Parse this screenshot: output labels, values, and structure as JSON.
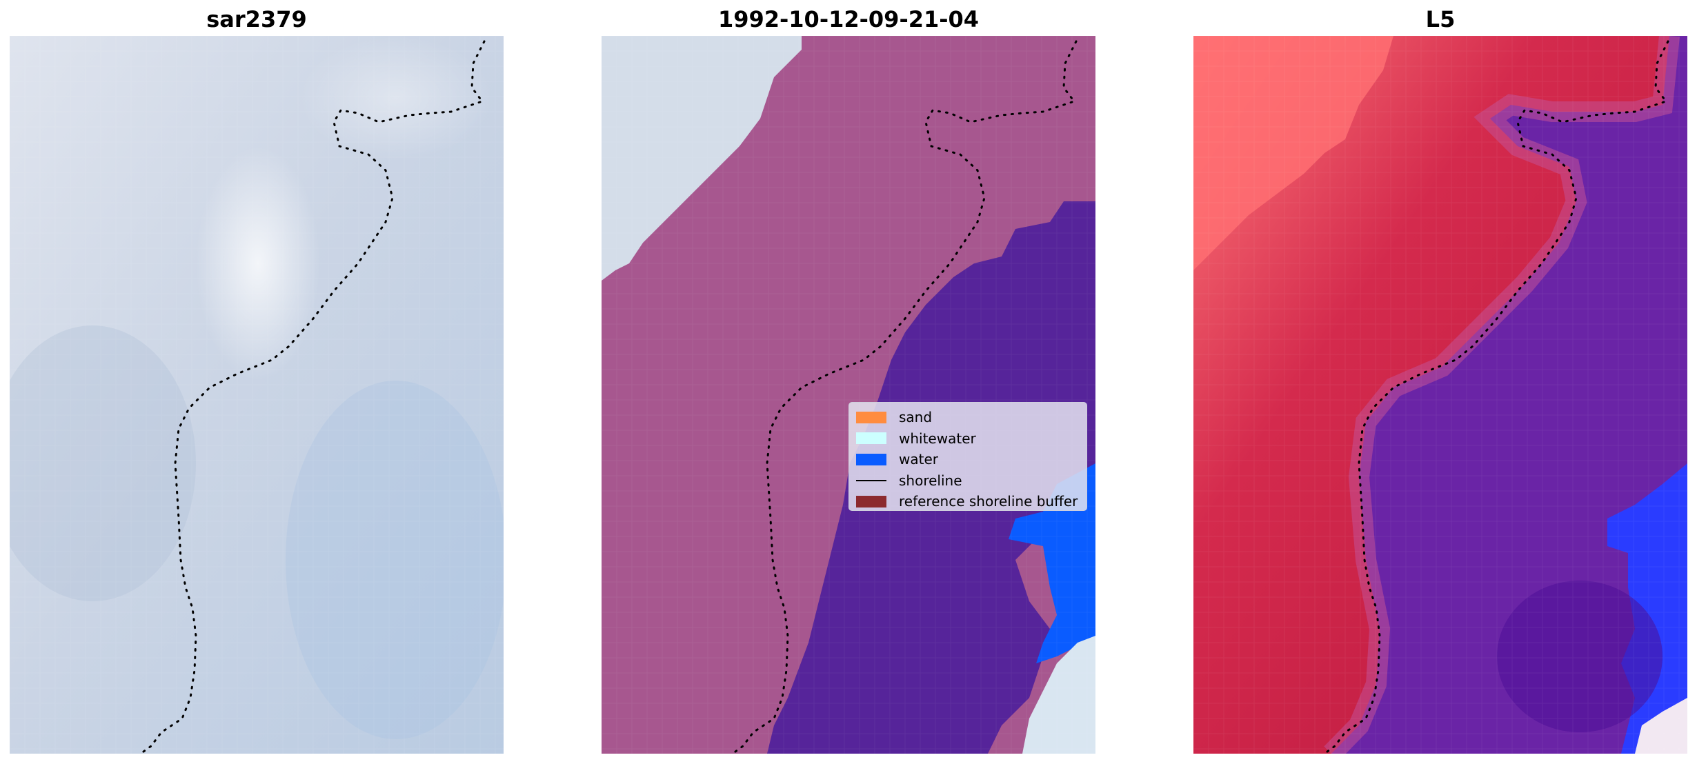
{
  "panels": [
    {
      "title": "sar2379",
      "icon": "rgb-image"
    },
    {
      "title": "1992-10-12-09-21-04",
      "icon": "classification-map"
    },
    {
      "title": "L5",
      "icon": "index-map"
    }
  ],
  "legend": {
    "items": [
      {
        "label": "sand",
        "color": "#ff8c3f",
        "kind": "patch"
      },
      {
        "label": "whitewater",
        "color": "#ccffff",
        "kind": "patch"
      },
      {
        "label": "water",
        "color": "#0a5cff",
        "kind": "patch"
      },
      {
        "label": "shoreline",
        "color": "#000000",
        "kind": "line"
      },
      {
        "label": "reference shoreline buffer",
        "color": "#8c2a2e",
        "kind": "patch"
      }
    ]
  },
  "colors": {
    "rgb_base": "#c7d3e4",
    "land_overlay": "#a7578f",
    "sea_overlay": "#56249a",
    "water_blue": "#0a5cff",
    "index_red": "#c41a44",
    "index_purple": "#5a1fa5",
    "index_blue": "#2a3cff"
  }
}
